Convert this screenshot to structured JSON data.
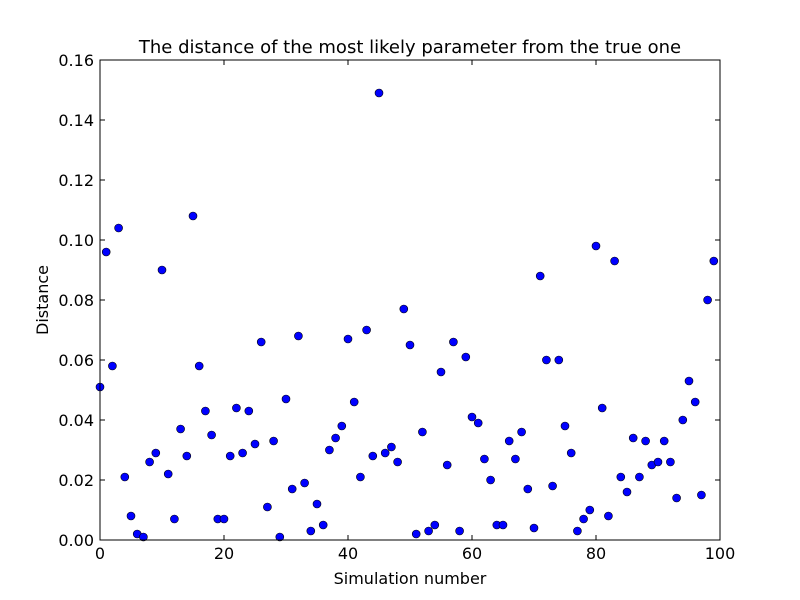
{
  "chart_data": {
    "type": "scatter",
    "title": "The distance of the most likely parameter from the true one",
    "xlabel": "Simulation number",
    "ylabel": "Distance",
    "xlim": [
      0,
      100
    ],
    "ylim": [
      0,
      0.16
    ],
    "xticks": [
      0,
      20,
      40,
      60,
      80,
      100
    ],
    "xtick_labels": [
      "0",
      "20",
      "40",
      "60",
      "80",
      "100"
    ],
    "yticks": [
      0.0,
      0.02,
      0.04,
      0.06,
      0.08,
      0.1,
      0.12,
      0.14,
      0.16
    ],
    "ytick_labels": [
      "0.00",
      "0.02",
      "0.04",
      "0.06",
      "0.08",
      "0.10",
      "0.12",
      "0.14",
      "0.16"
    ],
    "grid": false,
    "marker_color": "#0000ff",
    "x": [
      0,
      1,
      2,
      3,
      4,
      5,
      6,
      7,
      8,
      9,
      10,
      11,
      12,
      13,
      14,
      15,
      16,
      17,
      18,
      19,
      20,
      21,
      22,
      23,
      24,
      25,
      26,
      27,
      28,
      29,
      30,
      31,
      32,
      33,
      34,
      35,
      36,
      37,
      38,
      39,
      40,
      41,
      42,
      43,
      44,
      45,
      46,
      47,
      48,
      49,
      50,
      51,
      52,
      53,
      54,
      55,
      56,
      57,
      58,
      59,
      60,
      61,
      62,
      63,
      64,
      65,
      66,
      67,
      68,
      69,
      70,
      71,
      72,
      73,
      74,
      75,
      76,
      77,
      78,
      79,
      80,
      81,
      82,
      83,
      84,
      85,
      86,
      87,
      88,
      89,
      90,
      91,
      92,
      93,
      94,
      95,
      96,
      97,
      98,
      99
    ],
    "y": [
      0.051,
      0.096,
      0.058,
      0.104,
      0.021,
      0.008,
      0.002,
      0.001,
      0.026,
      0.029,
      0.09,
      0.022,
      0.007,
      0.037,
      0.028,
      0.108,
      0.058,
      0.043,
      0.035,
      0.007,
      0.007,
      0.028,
      0.044,
      0.029,
      0.043,
      0.032,
      0.066,
      0.011,
      0.033,
      0.001,
      0.047,
      0.017,
      0.068,
      0.019,
      0.003,
      0.012,
      0.005,
      0.03,
      0.034,
      0.038,
      0.067,
      0.046,
      0.021,
      0.07,
      0.028,
      0.149,
      0.029,
      0.031,
      0.026,
      0.077,
      0.065,
      0.002,
      0.036,
      0.003,
      0.005,
      0.056,
      0.025,
      0.066,
      0.003,
      0.061,
      0.041,
      0.039,
      0.027,
      0.02,
      0.005,
      0.005,
      0.033,
      0.027,
      0.036,
      0.017,
      0.004,
      0.088,
      0.06,
      0.018,
      0.06,
      0.038,
      0.029,
      0.003,
      0.007,
      0.01,
      0.098,
      0.044,
      0.008,
      0.093,
      0.021,
      0.016,
      0.034,
      0.021,
      0.033,
      0.025,
      0.026,
      0.033,
      0.026,
      0.014,
      0.04,
      0.053,
      0.046,
      0.015,
      0.08,
      0.093
    ]
  }
}
